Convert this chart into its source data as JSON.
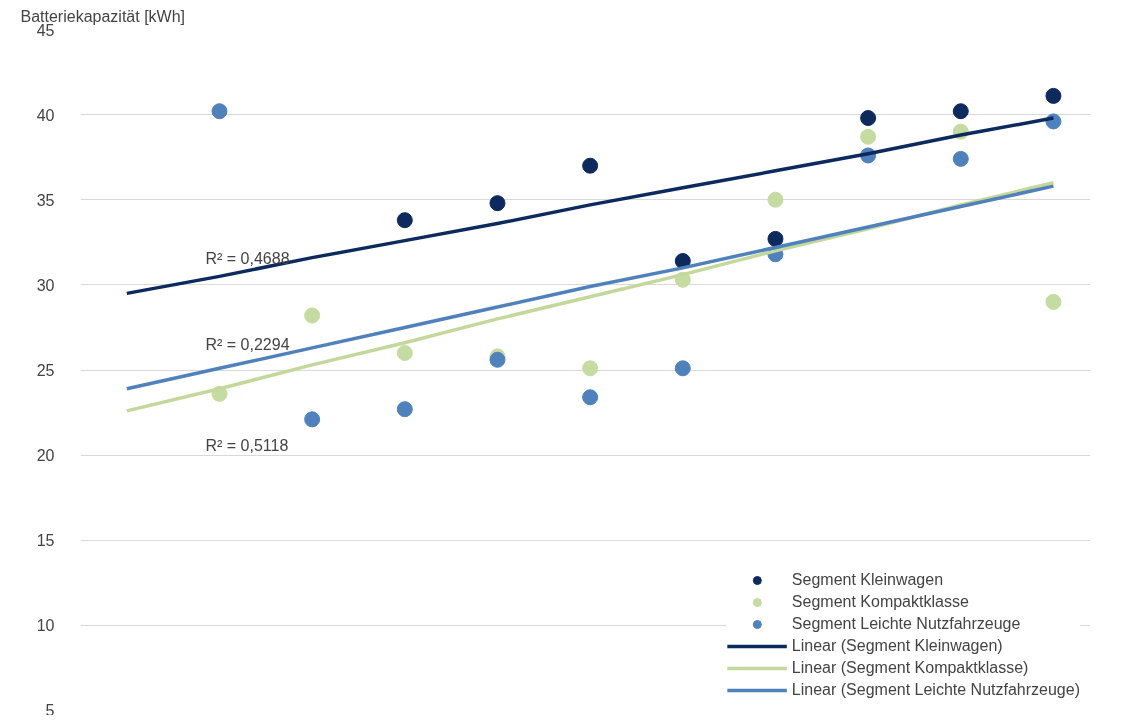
{
  "chart_data": {
    "type": "scatter",
    "ylabel": "Batteriekapazität [kWh]",
    "categories": [
      null,
      null,
      null,
      null,
      null,
      null,
      null,
      null,
      null,
      null,
      null
    ],
    "ylim": [
      5,
      45
    ],
    "yticks": [
      5,
      10,
      15,
      20,
      25,
      30,
      35,
      40,
      45
    ],
    "tick_labels": "y",
    "grid": "y",
    "legend": "bottom right",
    "series": [
      {
        "name": "Segment Kleinwagen",
        "marker": "circle",
        "color": "#0d2a5f",
        "values": [
          null,
          null,
          null,
          33.8,
          34.8,
          37.0,
          31.4,
          32.7,
          39.8,
          40.2,
          41.1
        ]
      },
      {
        "name": "Segment Kompaktklasse",
        "marker": "circle",
        "color": "#c5dca0",
        "values": [
          null,
          23.6,
          28.2,
          26.0,
          25.8,
          25.1,
          30.3,
          35.0,
          38.7,
          39.0,
          29.0
        ]
      },
      {
        "name": "Segment Leichte Nutzfahrzeuge",
        "marker": "circle",
        "color": "#4f81bd",
        "values": [
          null,
          40.2,
          22.1,
          22.7,
          25.6,
          23.4,
          25.1,
          31.8,
          37.6,
          37.4,
          39.6
        ]
      },
      {
        "name": "Linear (Segment Kleinwagen)",
        "type": "line",
        "marker": "none",
        "color": "#0d2a5f",
        "values": [
          29.5,
          30.5,
          31.6,
          32.6,
          33.6,
          34.7,
          35.7,
          36.7,
          37.7,
          38.8,
          39.8
        ]
      },
      {
        "name": "Linear (Segment Kompaktklasse)",
        "type": "line",
        "marker": "none",
        "color": "#c3d99b",
        "values": [
          22.6,
          23.9,
          25.3,
          26.6,
          28.0,
          29.3,
          30.6,
          32.0,
          33.3,
          34.7,
          36.0
        ]
      },
      {
        "name": "Linear (Segment Leichte Nutzfahrzeuge)",
        "type": "line",
        "marker": "none",
        "color": "#4f81bd",
        "values": [
          23.9,
          25.1,
          26.3,
          27.5,
          28.7,
          29.9,
          31.0,
          32.2,
          33.4,
          34.6,
          35.8
        ]
      }
    ],
    "annotations": [
      "R² = 0,4688",
      "R² = 0,2294",
      "R² = 0,5118"
    ]
  }
}
